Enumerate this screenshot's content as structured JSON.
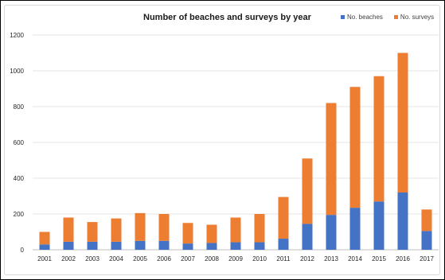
{
  "chart_data": {
    "type": "bar",
    "stacked": true,
    "title": "Number of beaches and surveys by year",
    "xlabel": "",
    "ylabel": "",
    "categories": [
      "2001",
      "2002",
      "2003",
      "2004",
      "2005",
      "2006",
      "2007",
      "2008",
      "2009",
      "2010",
      "2011",
      "2012",
      "2013",
      "2014",
      "2015",
      "2016",
      "2017"
    ],
    "series": [
      {
        "name": "No. beaches",
        "color": "#4472c4",
        "values": [
          30,
          45,
          45,
          45,
          50,
          50,
          35,
          38,
          42,
          42,
          62,
          145,
          195,
          235,
          270,
          320,
          105
        ]
      },
      {
        "name": "No. surveys",
        "color": "#ed7d31",
        "values": [
          70,
          135,
          110,
          130,
          155,
          150,
          115,
          102,
          138,
          158,
          233,
          365,
          625,
          675,
          700,
          780,
          120
        ]
      }
    ],
    "ylim": [
      0,
      1200
    ],
    "yticks": [
      "0",
      "200",
      "400",
      "600",
      "800",
      "1000",
      "1200"
    ],
    "grid": true,
    "legend_position": "top-right"
  }
}
